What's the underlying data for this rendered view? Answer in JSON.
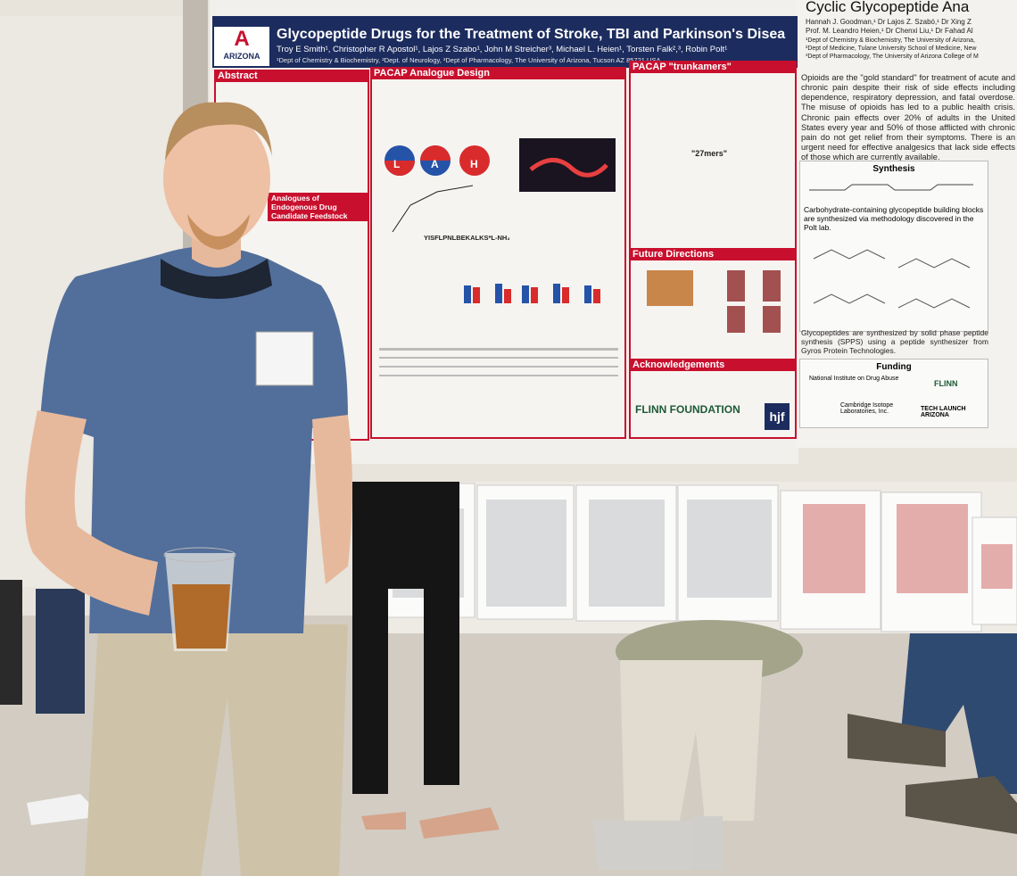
{
  "poster_main": {
    "logo": "ARIZONA",
    "title": "Glycopeptide Drugs for the Treatment of Stroke, TBI and Parkinson's Disea",
    "authors": "Troy E Smith¹, Christopher R Apostol¹, Lajos Z Szabo¹, John M Streicher³, Michael L. Heien¹, Torsten Falk²,³, Robin Polt¹",
    "affiliations": "¹Dept of Chemistry & Biochemistry, ²Dept. of Neurology, ³Dept of Pharmacology, The University of Arizona, Tucson AZ 85721 USA",
    "sections": [
      "Abstract",
      "PACAP Analogue Design",
      "PACAP \"trunkamers\"",
      "Analogues of Endogenous Drug Candidate Feedstock",
      "Future Directions",
      "Acknowledgements"
    ],
    "labels": [
      "\"27mers\"",
      "L",
      "A",
      "H",
      "YISFLPNLBEKALKS*L-NH₂",
      "FLINN FOUNDATION",
      "hjf"
    ]
  },
  "poster_right": {
    "title": "Cyclic Glycopeptide Ana",
    "authors": [
      "Hannah J. Goodman,¹ Dr Lajos Z. Szabó,¹ Dr Xing Z",
      "Prof. M. Leandro Heien,¹ Dr Chenxi Liu,¹ Dr Fahad Al",
      "¹Dept of Chemistry & Biochemistry, The University of Arizona,",
      "²Dept of Medicine, Tulane University School of Medicine, New",
      "³Dept of Pharmacology, The University of Arizona College of M"
    ],
    "intro": "Opioids are the \"gold standard\" for treatment of acute and chronic pain despite their risk of side effects including dependence, respiratory depression, and fatal overdose. The misuse of opioids has led to a public health crisis. Chronic pain effects over 20% of adults in the United States every year and 50% of those afflicted with chronic pain do not get relief from their symptoms. There is an urgent need for effective analgesics that lack side effects of those which are currently available.",
    "synthesis_heading": "Synthesis",
    "synthesis_text": "Carbohydrate-containing glycopeptide building blocks are synthesized via methodology discovered in the Polt lab.",
    "spps_text": "Glycopeptides are synthesized by solid phase peptide synthesis (SPPS) using a peptide synthesizer from Gyros Protein Technologies.",
    "funding_heading": "Funding",
    "funders": [
      "National Institute on Drug Abuse",
      "FLINN",
      "Cambridge Isotope Laboratories, Inc.",
      "TECH LAUNCH ARIZONA"
    ]
  }
}
